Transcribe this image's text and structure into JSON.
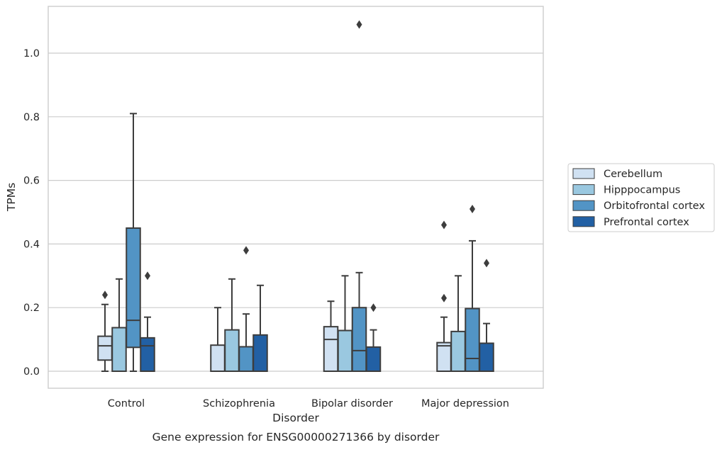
{
  "chart_data": {
    "type": "box",
    "title": "Gene expression for ENSG00000271366 by disorder",
    "xlabel": "Disorder",
    "ylabel": "TPMs",
    "ylim": [
      -0.05,
      1.145
    ],
    "yticks": [
      "0.0",
      "0.2",
      "0.4",
      "0.6",
      "0.8",
      "1.0"
    ],
    "grid": "horizontal",
    "legend_position": "right",
    "categories": [
      "Control",
      "Schizophrenia",
      "Bipolar disorder",
      "Major depression"
    ],
    "series": [
      {
        "name": "Cerebellum",
        "color": "#d0e1f2",
        "boxes": [
          {
            "whislo": 0.0,
            "q1": 0.035,
            "med": 0.08,
            "q3": 0.11,
            "whishi": 0.21,
            "fliers": [
              0.24
            ]
          },
          {
            "whislo": 0.0,
            "q1": 0.0,
            "med": 0.0,
            "q3": 0.082,
            "whishi": 0.2,
            "fliers": []
          },
          {
            "whislo": 0.0,
            "q1": 0.0,
            "med": 0.1,
            "q3": 0.14,
            "whishi": 0.22,
            "fliers": []
          },
          {
            "whislo": 0.0,
            "q1": 0.0,
            "med": 0.08,
            "q3": 0.09,
            "whishi": 0.17,
            "fliers": [
              0.23,
              0.46
            ]
          }
        ]
      },
      {
        "name": "Hipppocampus",
        "color": "#9ac8e0",
        "boxes": [
          {
            "whislo": 0.0,
            "q1": 0.0,
            "med": 0.0,
            "q3": 0.137,
            "whishi": 0.29,
            "fliers": []
          },
          {
            "whislo": 0.0,
            "q1": 0.0,
            "med": 0.0,
            "q3": 0.13,
            "whishi": 0.29,
            "fliers": []
          },
          {
            "whislo": 0.0,
            "q1": 0.0,
            "med": 0.0,
            "q3": 0.128,
            "whishi": 0.3,
            "fliers": []
          },
          {
            "whislo": 0.0,
            "q1": 0.0,
            "med": 0.0,
            "q3": 0.125,
            "whishi": 0.3,
            "fliers": []
          }
        ]
      },
      {
        "name": "Orbitofrontal cortex",
        "color": "#5294c5",
        "boxes": [
          {
            "whislo": 0.0,
            "q1": 0.075,
            "med": 0.16,
            "q3": 0.45,
            "whishi": 0.81,
            "fliers": []
          },
          {
            "whislo": 0.0,
            "q1": 0.0,
            "med": 0.0,
            "q3": 0.077,
            "whishi": 0.18,
            "fliers": [
              0.38
            ]
          },
          {
            "whislo": 0.0,
            "q1": 0.0,
            "med": 0.065,
            "q3": 0.2,
            "whishi": 0.31,
            "fliers": [
              1.09
            ]
          },
          {
            "whislo": 0.0,
            "q1": 0.0,
            "med": 0.04,
            "q3": 0.197,
            "whishi": 0.41,
            "fliers": [
              0.51
            ]
          }
        ]
      },
      {
        "name": "Prefrontal cortex",
        "color": "#2260a4",
        "boxes": [
          {
            "whislo": 0.0,
            "q1": 0.0,
            "med": 0.08,
            "q3": 0.105,
            "whishi": 0.17,
            "fliers": [
              0.3
            ]
          },
          {
            "whislo": 0.0,
            "q1": 0.0,
            "med": 0.0,
            "q3": 0.114,
            "whishi": 0.27,
            "fliers": []
          },
          {
            "whislo": 0.0,
            "q1": 0.0,
            "med": 0.0,
            "q3": 0.076,
            "whishi": 0.13,
            "fliers": [
              0.2
            ]
          },
          {
            "whislo": 0.0,
            "q1": 0.0,
            "med": 0.0,
            "q3": 0.088,
            "whishi": 0.15,
            "fliers": [
              0.34
            ]
          }
        ]
      }
    ]
  }
}
